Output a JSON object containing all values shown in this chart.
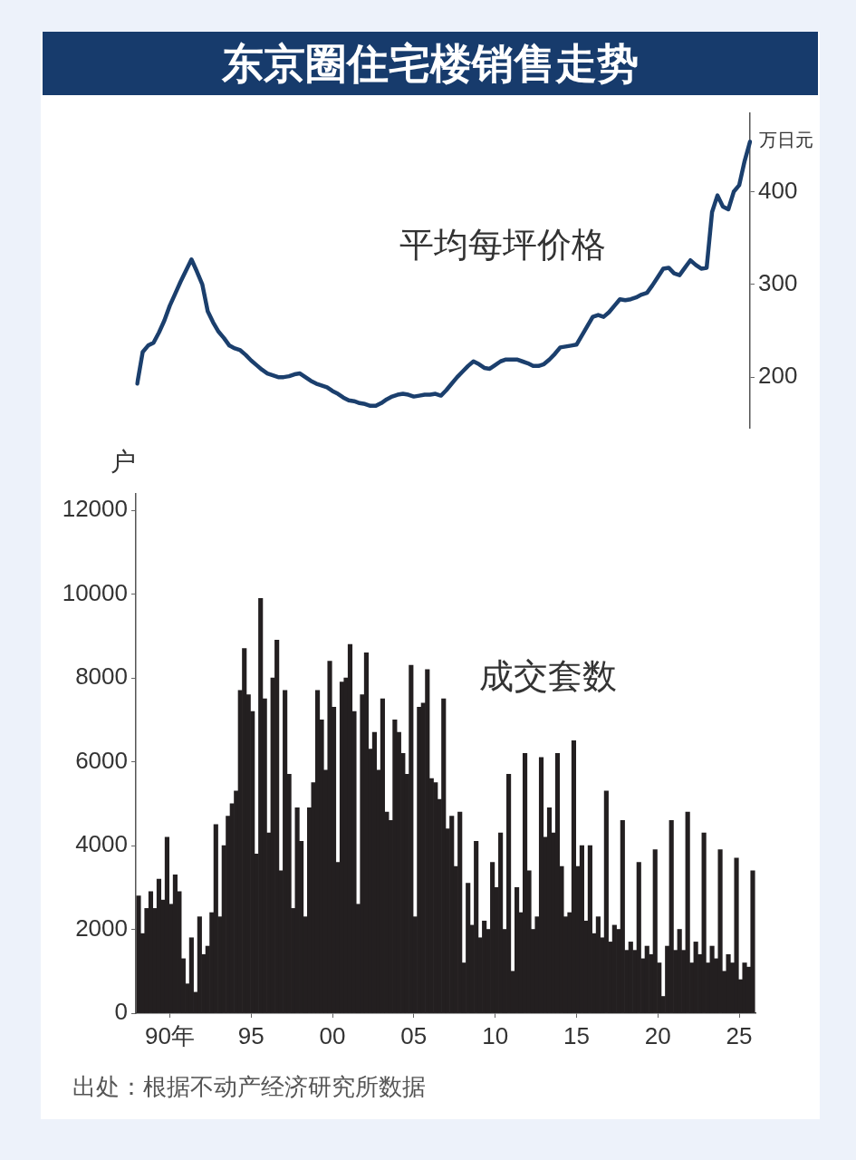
{
  "chart_data": [
    {
      "type": "line",
      "title": "东京圈住宅楼销售走势",
      "ylabel": "万日元",
      "categories": [
        null,
        null,
        null,
        null,
        null,
        null,
        null,
        null,
        null,
        null,
        null,
        null,
        null,
        null,
        null,
        null,
        null,
        null,
        null,
        null,
        null,
        null,
        null,
        null,
        null,
        null,
        null,
        null,
        null,
        null,
        null,
        null,
        null,
        null,
        null,
        null,
        null,
        null,
        null,
        null,
        null,
        null,
        null,
        null,
        null,
        null,
        null,
        null,
        null,
        null,
        null,
        null,
        null,
        null,
        null,
        null,
        null,
        null,
        null,
        null,
        null,
        null,
        null,
        null,
        null,
        null,
        null,
        null,
        null,
        null,
        null,
        null,
        null,
        null,
        null,
        null,
        null,
        null,
        null,
        null,
        null,
        null,
        null,
        null,
        null,
        null,
        null,
        null,
        null,
        null,
        null,
        null,
        null,
        null,
        null,
        null,
        null,
        null,
        null,
        null,
        null,
        null,
        null,
        null,
        null,
        null,
        null,
        null,
        null,
        null,
        null,
        null,
        null,
        null
      ],
      "series": [
        {
          "name": "平均每坪价格",
          "color": "#1b3f6d",
          "values": [
            193,
            227,
            234,
            237,
            248,
            261,
            277,
            290,
            303,
            315,
            327,
            314,
            300,
            271,
            259,
            249,
            242,
            234,
            231,
            229,
            224,
            218,
            213,
            208,
            204,
            202,
            200,
            200,
            201,
            203,
            204,
            200,
            196,
            193,
            191,
            189,
            185,
            182,
            178,
            175,
            174,
            172,
            171,
            169,
            169,
            172,
            176,
            179,
            181,
            182,
            181,
            179,
            180,
            181,
            181,
            182,
            180,
            186,
            193,
            200,
            206,
            212,
            217,
            214,
            210,
            209,
            213,
            217,
            219,
            219,
            219,
            217,
            215,
            212,
            212,
            214,
            219,
            225,
            232,
            233,
            234,
            235,
            245,
            255,
            265,
            267,
            265,
            270,
            277,
            284,
            283,
            284,
            286,
            289,
            291,
            299,
            308,
            317,
            318,
            312,
            310,
            318,
            326,
            321,
            317,
            318,
            378,
            396,
            384,
            381,
            400,
            407,
            433,
            454
          ]
        }
      ],
      "ylim": [
        145,
        485
      ],
      "yticks": [
        200,
        300,
        400
      ],
      "tick_labels": "y"
    },
    {
      "type": "bar",
      "ylabel": "户",
      "x": [
        "1988-02",
        "1988-05",
        "1988-08",
        "1988-11",
        "1989-02",
        "1989-05",
        "1989-08",
        "1989-11",
        "1990-02",
        "1990-05",
        "1990-08",
        "1990-11",
        "1991-02",
        "1991-05",
        "1991-08",
        "1991-11",
        "1992-02",
        "1992-05",
        "1992-08",
        "1992-11",
        "1993-02",
        "1993-05",
        "1993-08",
        "1993-11",
        "1994-02",
        "1994-05",
        "1994-08",
        "1994-11",
        "1995-02",
        "1995-05",
        "1995-08",
        "1995-11",
        "1996-02",
        "1996-05",
        "1996-08",
        "1996-11",
        "1997-02",
        "1997-05",
        "1997-08",
        "1997-11",
        "1998-02",
        "1998-05",
        "1998-08",
        "1998-11",
        "1999-02",
        "1999-05",
        "1999-08",
        "1999-11",
        "2000-02",
        "2000-05",
        "2000-08",
        "2000-11",
        "2001-02",
        "2001-05",
        "2001-08",
        "2001-11",
        "2002-02",
        "2002-05",
        "2002-08",
        "2002-11",
        "2003-02",
        "2003-05",
        "2003-08",
        "2003-11",
        "2004-02",
        "2004-05",
        "2004-08",
        "2004-11",
        "2005-02",
        "2005-05",
        "2005-08",
        "2005-11",
        "2006-02",
        "2006-05",
        "2006-08",
        "2006-11",
        "2007-02",
        "2007-05",
        "2007-08",
        "2007-11",
        "2008-02",
        "2008-05",
        "2008-08",
        "2008-11",
        "2009-02",
        "2009-05",
        "2009-08",
        "2009-11",
        "2010-02",
        "2010-05",
        "2010-08",
        "2010-11",
        "2011-02",
        "2011-05",
        "2011-08",
        "2011-11",
        "2012-02",
        "2012-05",
        "2012-08",
        "2012-11",
        "2013-02",
        "2013-05",
        "2013-08",
        "2013-11",
        "2014-02",
        "2014-05",
        "2014-08",
        "2014-11",
        "2015-02",
        "2015-05",
        "2015-08",
        "2015-11",
        "2016-02",
        "2016-05",
        "2016-08",
        "2016-11",
        "2017-02",
        "2017-05",
        "2017-08",
        "2017-11",
        "2018-02",
        "2018-05",
        "2018-08",
        "2018-11",
        "2019-02",
        "2019-05",
        "2019-08",
        "2019-11",
        "2020-02",
        "2020-05",
        "2020-08",
        "2020-11",
        "2021-02",
        "2021-05",
        "2021-08",
        "2021-11",
        "2022-02",
        "2022-05",
        "2022-08",
        "2022-11",
        "2023-02",
        "2023-05",
        "2023-08",
        "2023-11",
        "2024-02",
        "2024-05",
        "2024-08",
        "2024-11",
        "2025-02",
        "2025-05",
        "2025-08",
        "2025-11"
      ],
      "series": [
        {
          "name": "成交套数",
          "color": "#231f20",
          "values": [
            2800,
            1900,
            2500,
            2900,
            2500,
            3200,
            2700,
            4200,
            2600,
            3300,
            2900,
            1300,
            700,
            1800,
            500,
            2300,
            1400,
            1600,
            2400,
            4500,
            2300,
            4000,
            4700,
            5000,
            5300,
            7700,
            8700,
            7600,
            7200,
            3800,
            9900,
            7500,
            4300,
            8000,
            8900,
            3400,
            7700,
            5700,
            2500,
            4900,
            4100,
            2300,
            4900,
            5500,
            7700,
            7000,
            5800,
            8400,
            7300,
            3600,
            7900,
            8000,
            8800,
            7200,
            2600,
            7600,
            8600,
            6300,
            6700,
            5800,
            7500,
            4800,
            4600,
            7000,
            6700,
            6200,
            5700,
            8300,
            2300,
            7300,
            7400,
            8200,
            5600,
            5500,
            5100,
            7500,
            4400,
            4700,
            3500,
            4800,
            1200,
            3100,
            2100,
            4100,
            1800,
            2200,
            2000,
            3600,
            3000,
            4300,
            2000,
            5700,
            1000,
            3000,
            2400,
            6200,
            3400,
            2000,
            2300,
            6100,
            4200,
            4900,
            4300,
            6200,
            3500,
            2300,
            2400,
            6500,
            3500,
            4000,
            2200,
            4000,
            1900,
            2300,
            1800,
            5300,
            1700,
            2100,
            2000,
            4600,
            1500,
            1700,
            1500,
            3600,
            1300,
            1600,
            1400,
            3900,
            1200,
            400,
            1600,
            4600,
            1500,
            2000,
            1500,
            4800,
            1200,
            1700,
            1400,
            4300,
            1200,
            1600,
            1300,
            3900,
            1000,
            1400,
            1200,
            3700,
            800,
            1200,
            1100,
            3400
          ]
        }
      ],
      "xlim": [
        "1987-12",
        "2026"
      ],
      "xticks": [
        {
          "value": "1990",
          "label": "90年"
        },
        {
          "value": "1995",
          "label": "95"
        },
        {
          "value": "2000",
          "label": "00"
        },
        {
          "value": "2005",
          "label": "05"
        },
        {
          "value": "2010",
          "label": "10"
        },
        {
          "value": "2015",
          "label": "15"
        },
        {
          "value": "2020",
          "label": "20"
        },
        {
          "value": "2025",
          "label": "25"
        }
      ],
      "ylim": [
        0,
        12400
      ],
      "yticks": [
        0,
        2000,
        4000,
        6000,
        8000,
        10000,
        12000
      ],
      "annotations": [
        "出处：根据不动产经济研究所数据"
      ]
    }
  ]
}
